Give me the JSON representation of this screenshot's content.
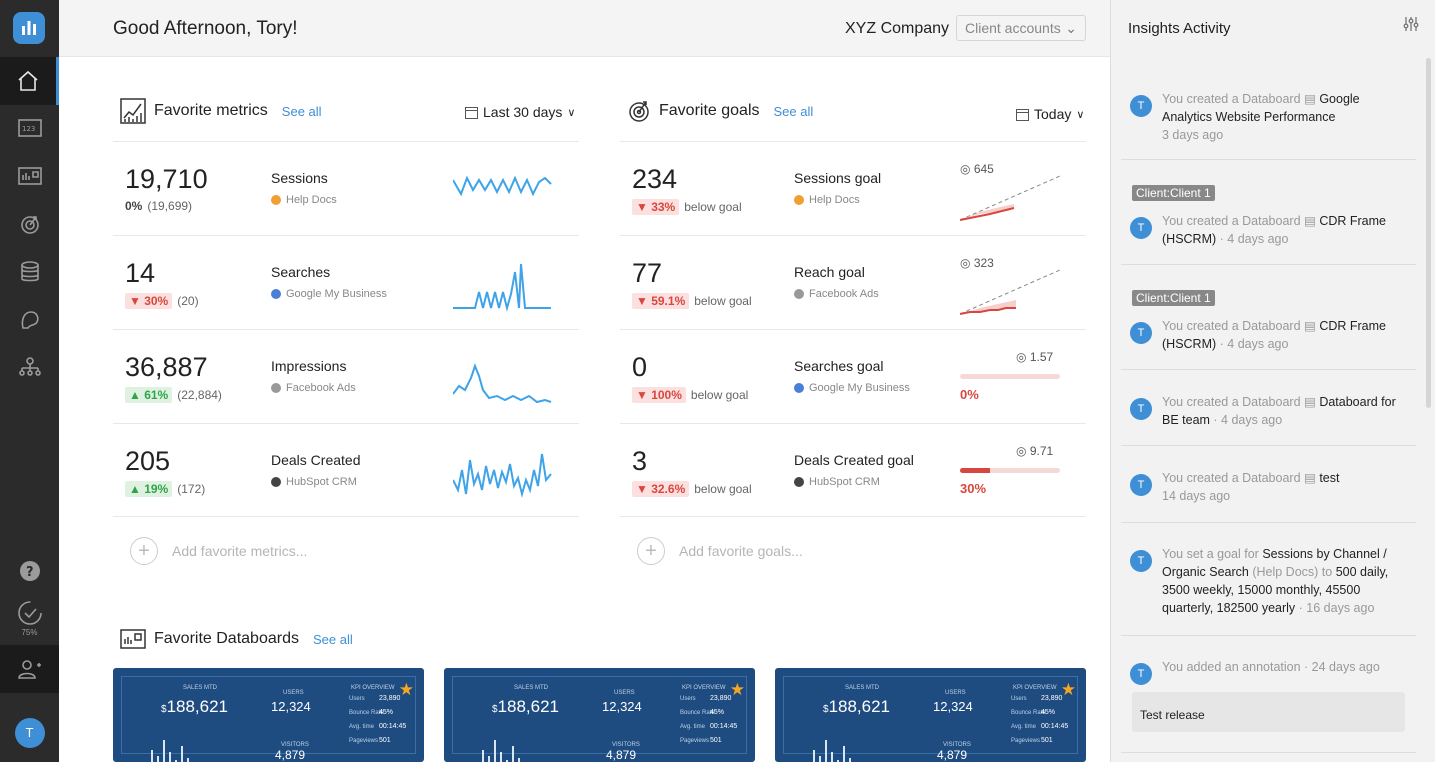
{
  "sidebar": {
    "progress_pct": "75%",
    "avatar_initial": "T"
  },
  "header": {
    "greeting": "Good Afternoon, Tory!",
    "company": "XYZ Company",
    "client_select": "Client accounts"
  },
  "metrics": {
    "title": "Favorite metrics",
    "see_all": "See all",
    "period": "Last 30 days",
    "add_label": "Add favorite metrics...",
    "items": [
      {
        "value": "19,710",
        "delta": "0%",
        "prev": "(19,699)",
        "direction": "flat",
        "name": "Sessions",
        "source": "Help Docs",
        "source_color": "#f0a030"
      },
      {
        "value": "14",
        "delta": "▼ 30%",
        "prev": "(20)",
        "direction": "down",
        "name": "Searches",
        "source": "Google My Business",
        "source_color": "#4a7fd8"
      },
      {
        "value": "36,887",
        "delta": "▲ 61%",
        "prev": "(22,884)",
        "direction": "up",
        "name": "Impressions",
        "source": "Facebook Ads",
        "source_color": "#999999"
      },
      {
        "value": "205",
        "delta": "▲ 19%",
        "prev": "(172)",
        "direction": "up",
        "name": "Deals Created",
        "source": "HubSpot CRM",
        "source_color": "#444444"
      }
    ]
  },
  "goals": {
    "title": "Favorite goals",
    "see_all": "See all",
    "period": "Today",
    "add_label": "Add favorite goals...",
    "items": [
      {
        "value": "234",
        "delta": "▼ 33%",
        "note": "below goal",
        "name": "Sessions goal",
        "source": "Help Docs",
        "source_color": "#f0a030",
        "target": "645",
        "kind": "line",
        "progress": null
      },
      {
        "value": "77",
        "delta": "▼ 59.1%",
        "note": "below goal",
        "name": "Reach goal",
        "source": "Facebook Ads",
        "source_color": "#999999",
        "target": "323",
        "kind": "line",
        "progress": null
      },
      {
        "value": "0",
        "delta": "▼ 100%",
        "note": "below goal",
        "name": "Searches goal",
        "source": "Google My Business",
        "source_color": "#4a7fd8",
        "target": "1.57",
        "kind": "bar",
        "progress": 0,
        "progress_label": "0%"
      },
      {
        "value": "3",
        "delta": "▼ 32.6%",
        "note": "below goal",
        "name": "Deals Created goal",
        "source": "HubSpot CRM",
        "source_color": "#444444",
        "target": "9.71",
        "kind": "bar",
        "progress": 0.3,
        "progress_label": "30%"
      }
    ]
  },
  "databoards": {
    "title": "Favorite Databoards",
    "see_all": "See all",
    "card": {
      "sales_label": "SALES MTD",
      "sales_value": "188,621",
      "currency": "$",
      "users_label": "USERS",
      "users_value": "12,324",
      "visitors_label": "VISITORS",
      "visitors_value": "4,879",
      "kpi_label": "KPI OVERVIEW",
      "kpi_rows": [
        [
          "Users",
          "23,890"
        ],
        [
          "Bounce Rate",
          "45%"
        ],
        [
          "Avg. time",
          "00:14:45"
        ],
        [
          "Pageviews",
          "501"
        ]
      ]
    }
  },
  "insights": {
    "title": "Insights Activity",
    "activities": [
      {
        "chip": null,
        "prefix": "You created a Databoard ",
        "name": "Google Analytics Website Performance",
        "suffix": "",
        "time": "3 days ago",
        "time_newline": true
      },
      {
        "chip": "Client:Client 1",
        "prefix": "You created a Databoard ",
        "name": "CDR Frame (HSCRM)",
        "suffix": "",
        "time": " · 4 days ago",
        "time_newline": false
      },
      {
        "chip": "Client:Client 1",
        "prefix": "You created a Databoard ",
        "name": "CDR Frame (HSCRM)",
        "suffix": "",
        "time": " · 4 days ago",
        "time_newline": false
      },
      {
        "chip": null,
        "prefix": "You created a Databoard ",
        "name": "Databoard for BE team",
        "suffix": "",
        "time": " · 4 days ago",
        "time_newline": false
      },
      {
        "chip": null,
        "prefix": "You created a Databoard ",
        "name": "test",
        "suffix": "",
        "time": "14 days ago",
        "time_newline": true
      },
      {
        "chip": null,
        "prefix": "You set a goal for ",
        "name": "Sessions by Channel / Organic Search",
        "suffix": " (Help Docs) to ",
        "extra": "500 daily, 3500 weekly, 15000 monthly, 45500 quarterly, 182500 yearly",
        "time": " · 16 days ago",
        "time_newline": false
      },
      {
        "chip": null,
        "prefix": "You added an annotation",
        "name": "",
        "suffix": "",
        "time": " · 24 days ago",
        "time_newline": false,
        "note": "Test release"
      }
    ]
  }
}
